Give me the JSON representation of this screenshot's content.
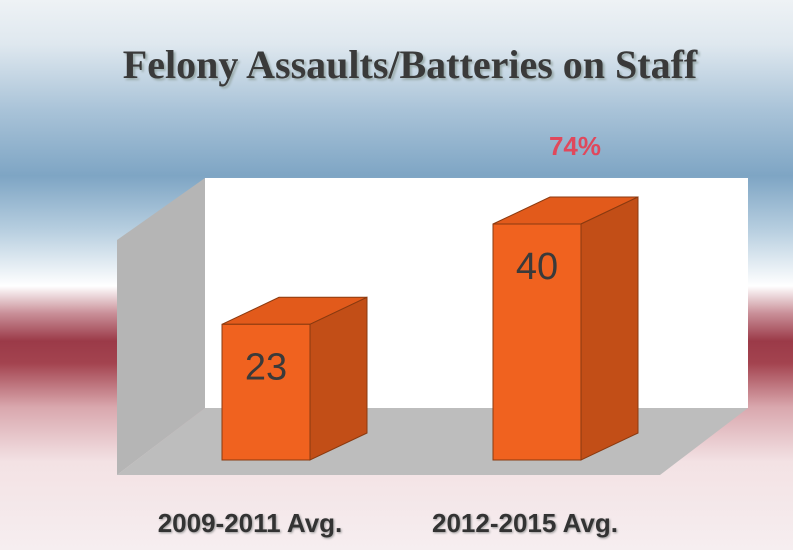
{
  "chart_data": {
    "type": "bar3d",
    "title": "Felony Assaults/Batteries on Staff",
    "annotation": "74%",
    "categories": [
      "2009-2011 Avg.",
      "2012-2015 Avg."
    ],
    "values": [
      23,
      40
    ],
    "color": "#f0621f",
    "ylim": [
      0,
      50
    ]
  }
}
